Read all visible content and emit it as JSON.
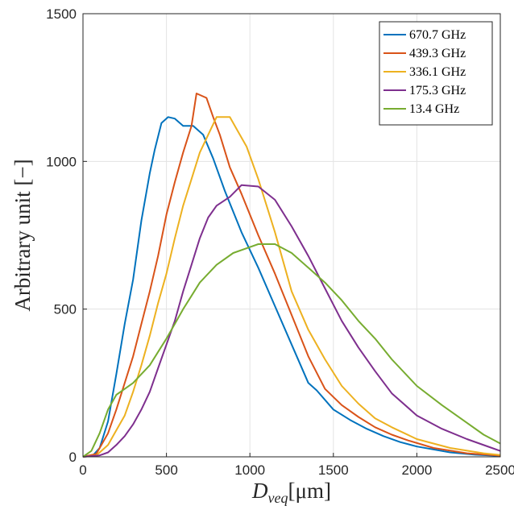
{
  "chart_data": {
    "type": "line",
    "title": "",
    "xlabel": "D",
    "xlabel_sub": "veq",
    "xlabel_unit": "[μm]",
    "ylabel": "Arbitrary unit [−]",
    "xlim": [
      0,
      2500
    ],
    "ylim": [
      0,
      1500
    ],
    "xticks": [
      0,
      500,
      1000,
      1500,
      2000,
      2500
    ],
    "yticks": [
      0,
      500,
      1000,
      1500
    ],
    "grid": true,
    "legend_position": "top-right",
    "series": [
      {
        "name": "670.7 GHz",
        "color": "#0072BD",
        "points": [
          [
            0,
            0
          ],
          [
            60,
            5
          ],
          [
            100,
            30
          ],
          [
            150,
            120
          ],
          [
            200,
            280
          ],
          [
            250,
            450
          ],
          [
            300,
            600
          ],
          [
            350,
            800
          ],
          [
            400,
            960
          ],
          [
            430,
            1040
          ],
          [
            470,
            1130
          ],
          [
            510,
            1150
          ],
          [
            550,
            1145
          ],
          [
            600,
            1120
          ],
          [
            660,
            1120
          ],
          [
            720,
            1090
          ],
          [
            780,
            1010
          ],
          [
            850,
            900
          ],
          [
            950,
            760
          ],
          [
            1050,
            640
          ],
          [
            1150,
            510
          ],
          [
            1250,
            380
          ],
          [
            1350,
            250
          ],
          [
            1400,
            225
          ],
          [
            1500,
            160
          ],
          [
            1600,
            125
          ],
          [
            1700,
            95
          ],
          [
            1800,
            70
          ],
          [
            1900,
            50
          ],
          [
            2000,
            35
          ],
          [
            2200,
            15
          ],
          [
            2350,
            7
          ],
          [
            2500,
            3
          ]
        ]
      },
      {
        "name": "439.3 GHz",
        "color": "#D95319",
        "points": [
          [
            0,
            0
          ],
          [
            80,
            10
          ],
          [
            150,
            80
          ],
          [
            200,
            160
          ],
          [
            250,
            250
          ],
          [
            300,
            340
          ],
          [
            350,
            450
          ],
          [
            400,
            560
          ],
          [
            450,
            680
          ],
          [
            500,
            820
          ],
          [
            550,
            930
          ],
          [
            600,
            1030
          ],
          [
            650,
            1120
          ],
          [
            680,
            1230
          ],
          [
            740,
            1215
          ],
          [
            780,
            1150
          ],
          [
            820,
            1090
          ],
          [
            880,
            980
          ],
          [
            950,
            890
          ],
          [
            1050,
            750
          ],
          [
            1150,
            620
          ],
          [
            1250,
            480
          ],
          [
            1350,
            340
          ],
          [
            1450,
            230
          ],
          [
            1550,
            175
          ],
          [
            1650,
            135
          ],
          [
            1750,
            100
          ],
          [
            1850,
            75
          ],
          [
            1950,
            55
          ],
          [
            2100,
            30
          ],
          [
            2300,
            12
          ],
          [
            2500,
            4
          ]
        ]
      },
      {
        "name": "336.1 GHz",
        "color": "#EDB120",
        "points": [
          [
            0,
            0
          ],
          [
            80,
            5
          ],
          [
            150,
            40
          ],
          [
            200,
            90
          ],
          [
            250,
            140
          ],
          [
            300,
            220
          ],
          [
            350,
            310
          ],
          [
            400,
            410
          ],
          [
            450,
            520
          ],
          [
            500,
            620
          ],
          [
            550,
            740
          ],
          [
            600,
            850
          ],
          [
            650,
            940
          ],
          [
            700,
            1030
          ],
          [
            750,
            1090
          ],
          [
            800,
            1150
          ],
          [
            880,
            1150
          ],
          [
            920,
            1110
          ],
          [
            980,
            1050
          ],
          [
            1050,
            940
          ],
          [
            1150,
            760
          ],
          [
            1250,
            560
          ],
          [
            1350,
            430
          ],
          [
            1450,
            330
          ],
          [
            1550,
            240
          ],
          [
            1650,
            180
          ],
          [
            1750,
            130
          ],
          [
            1850,
            100
          ],
          [
            2000,
            60
          ],
          [
            2200,
            30
          ],
          [
            2400,
            12
          ],
          [
            2500,
            6
          ]
        ]
      },
      {
        "name": "175.3 GHz",
        "color": "#7E2F8E",
        "points": [
          [
            0,
            0
          ],
          [
            100,
            5
          ],
          [
            150,
            15
          ],
          [
            200,
            40
          ],
          [
            250,
            70
          ],
          [
            300,
            110
          ],
          [
            350,
            160
          ],
          [
            400,
            220
          ],
          [
            450,
            300
          ],
          [
            500,
            380
          ],
          [
            550,
            460
          ],
          [
            600,
            560
          ],
          [
            650,
            650
          ],
          [
            700,
            740
          ],
          [
            750,
            810
          ],
          [
            800,
            850
          ],
          [
            880,
            880
          ],
          [
            950,
            920
          ],
          [
            1050,
            915
          ],
          [
            1150,
            870
          ],
          [
            1250,
            780
          ],
          [
            1350,
            680
          ],
          [
            1450,
            570
          ],
          [
            1550,
            460
          ],
          [
            1650,
            370
          ],
          [
            1750,
            290
          ],
          [
            1850,
            215
          ],
          [
            2000,
            140
          ],
          [
            2150,
            95
          ],
          [
            2300,
            60
          ],
          [
            2450,
            30
          ],
          [
            2500,
            20
          ]
        ]
      },
      {
        "name": "13.4 GHz",
        "color": "#77AC30",
        "points": [
          [
            0,
            0
          ],
          [
            50,
            20
          ],
          [
            100,
            80
          ],
          [
            150,
            160
          ],
          [
            200,
            210
          ],
          [
            250,
            230
          ],
          [
            300,
            250
          ],
          [
            350,
            280
          ],
          [
            400,
            310
          ],
          [
            450,
            355
          ],
          [
            500,
            400
          ],
          [
            550,
            450
          ],
          [
            600,
            500
          ],
          [
            650,
            545
          ],
          [
            700,
            590
          ],
          [
            800,
            650
          ],
          [
            900,
            690
          ],
          [
            1000,
            710
          ],
          [
            1050,
            720
          ],
          [
            1150,
            720
          ],
          [
            1250,
            690
          ],
          [
            1350,
            640
          ],
          [
            1450,
            590
          ],
          [
            1550,
            530
          ],
          [
            1650,
            460
          ],
          [
            1750,
            400
          ],
          [
            1850,
            330
          ],
          [
            2000,
            240
          ],
          [
            2150,
            175
          ],
          [
            2300,
            115
          ],
          [
            2400,
            75
          ],
          [
            2500,
            45
          ]
        ]
      }
    ]
  }
}
